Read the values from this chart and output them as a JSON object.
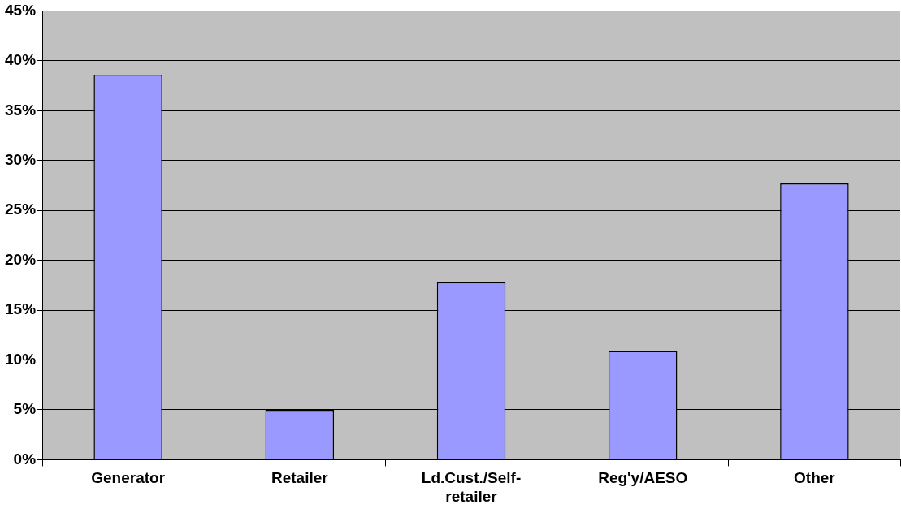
{
  "chart_data": {
    "type": "bar",
    "categories": [
      "Generator",
      "Retailer",
      "Ld.Cust./Self-retailer",
      "Reg'y/AESO",
      "Other"
    ],
    "values": [
      38.6,
      5.0,
      17.8,
      10.9,
      27.7
    ],
    "color": "#9999ff",
    "ylim": [
      0,
      45
    ],
    "yticks": [
      {
        "value": 0,
        "label": "0%"
      },
      {
        "value": 5,
        "label": "5%"
      },
      {
        "value": 10,
        "label": "10%"
      },
      {
        "value": 15,
        "label": "15%"
      },
      {
        "value": 20,
        "label": "20%"
      },
      {
        "value": 25,
        "label": "25%"
      },
      {
        "value": 30,
        "label": "30%"
      },
      {
        "value": 35,
        "label": "35%"
      },
      {
        "value": 40,
        "label": "40%"
      },
      {
        "value": 45,
        "label": "45%"
      }
    ],
    "grid": "y"
  }
}
